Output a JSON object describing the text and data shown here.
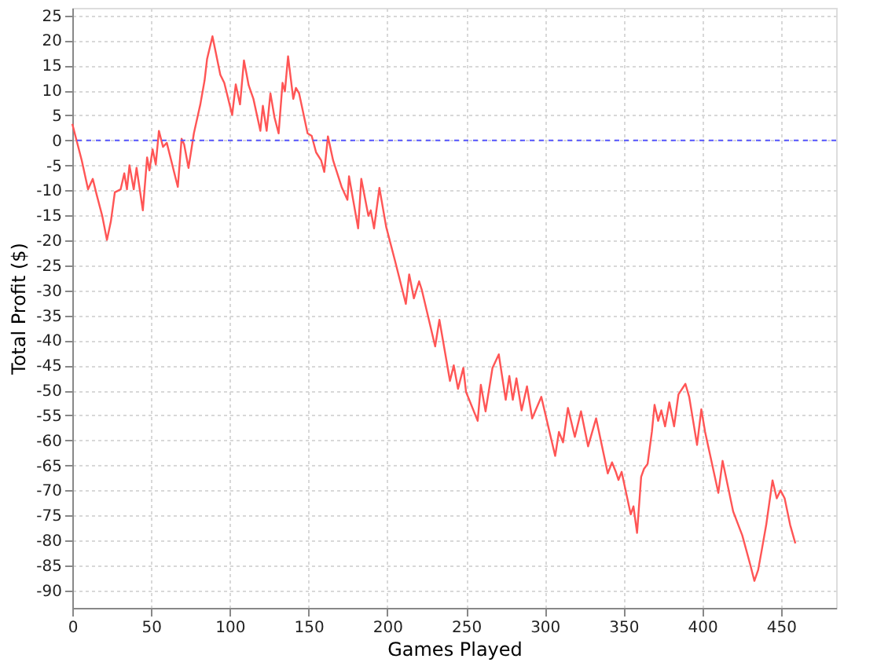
{
  "chart_data": {
    "type": "line",
    "xlabel": "Games Played",
    "ylabel": "Total Profit ($)",
    "xlim": [
      0,
      485
    ],
    "ylim": [
      -93.5,
      26.5
    ],
    "xticks": [
      0,
      50,
      100,
      150,
      200,
      250,
      300,
      350,
      400,
      450
    ],
    "yticks": [
      -90,
      -85,
      -80,
      -75,
      -70,
      -65,
      -60,
      -55,
      -50,
      -45,
      -40,
      -35,
      -30,
      -25,
      -20,
      -15,
      -10,
      -5,
      0,
      5,
      10,
      15,
      20,
      25
    ],
    "grid": true,
    "marker": "none",
    "line_style": "solid",
    "ref_lines": [
      {
        "axis": "y",
        "value": 0,
        "color": "#5555ff",
        "line_style": "dashed"
      }
    ],
    "series": [
      {
        "color": "#ff5555",
        "x": [
          0,
          6,
          10,
          13,
          15.5,
          19,
          22,
          24.5,
          27,
          30.7,
          33,
          34.7,
          36.3,
          39,
          40.8,
          44.8,
          47.5,
          49,
          51,
          53,
          55,
          57.6,
          60,
          67,
          69.4,
          71,
          73.8,
          77.2,
          81.3,
          84,
          85.6,
          89,
          94,
          96.5,
          101.5,
          103.8,
          106.5,
          109,
          112,
          115,
          119.4,
          121,
          123.4,
          125.8,
          128.4,
          131,
          133.5,
          135,
          137,
          140.3,
          142,
          144,
          149.4,
          152,
          154.8,
          158,
          160,
          162.3,
          165.6,
          171,
          174.7,
          175.7,
          181.5,
          183.5,
          188,
          189.5,
          191.6,
          195,
          199.3,
          205,
          211.8,
          213.9,
          216.9,
          220.2,
          222,
          230.4,
          233.1,
          239.8,
          242.2,
          244.9,
          248.3,
          250,
          257.4,
          259.4,
          262.4,
          266.8,
          270.8,
          275.2,
          277.5,
          279.7,
          282,
          285.3,
          288.7,
          292,
          297.8,
          306.6,
          309,
          311.6,
          314.7,
          319.1,
          323,
          327.5,
          332.6,
          340,
          342.7,
          345,
          346.8,
          348.8,
          354.6,
          356.3,
          358.6,
          361.2,
          363,
          365.3,
          368,
          369.7,
          372,
          374,
          376.4,
          379.1,
          382.1,
          384.9,
          389.3,
          391.7,
          396.7,
          399.4,
          401.8,
          410.2,
          412.9,
          419.6,
          425.4,
          430.5,
          433.1,
          435.5,
          437.9,
          440.6,
          444.6,
          447.3,
          449.7,
          452.3,
          455.8,
          459.1
        ],
        "values": [
          3.3,
          -4,
          -9.8,
          -7.7,
          -10.9,
          -15.1,
          -19.9,
          -16.2,
          -10.4,
          -9.8,
          -6.6,
          -9.8,
          -5,
          -9.8,
          -5.5,
          -14,
          -3.4,
          -6,
          -1.8,
          -4.8,
          1.9,
          -1.3,
          -0.5,
          -9.3,
          0.3,
          -0.8,
          -5.5,
          1.4,
          7.2,
          12,
          16.3,
          20.8,
          13.1,
          11.5,
          5.1,
          11.2,
          7.2,
          16,
          11,
          8.3,
          1.9,
          6.9,
          1.9,
          9.4,
          4.6,
          1.4,
          11.5,
          9.8,
          16.8,
          8.3,
          10.5,
          9.4,
          1.4,
          0.9,
          -2.4,
          -4,
          -6.3,
          0.8,
          -4,
          -9.3,
          -11.9,
          -7.2,
          -17.6,
          -7.7,
          -15.1,
          -14,
          -17.6,
          -9.5,
          -17.3,
          -24.2,
          -32.7,
          -26.8,
          -31.6,
          -28.2,
          -30,
          -41.2,
          -35.9,
          -48.1,
          -45,
          -49.7,
          -45.5,
          -50.3,
          -56.1,
          -48.9,
          -54.2,
          -45.5,
          -42.8,
          -51.9,
          -47.1,
          -51.9,
          -47.6,
          -54,
          -49.2,
          -55.6,
          -51.3,
          -63.1,
          -58.3,
          -60.4,
          -53.5,
          -59.3,
          -54.2,
          -61.2,
          -55.6,
          -66.6,
          -64.4,
          -66.2,
          -67.9,
          -66.3,
          -74.8,
          -73.2,
          -78.5,
          -67.3,
          -65.7,
          -64.7,
          -58.3,
          -52.9,
          -56.1,
          -54,
          -57.2,
          -52.4,
          -57.2,
          -50.8,
          -48.7,
          -51.3,
          -60.9,
          -53.8,
          -58.3,
          -70.5,
          -64.1,
          -74.2,
          -79,
          -84.9,
          -88.1,
          -85.9,
          -81.7,
          -76.9,
          -68,
          -71.6,
          -70,
          -71.6,
          -76.9,
          -80.6
        ]
      }
    ]
  }
}
